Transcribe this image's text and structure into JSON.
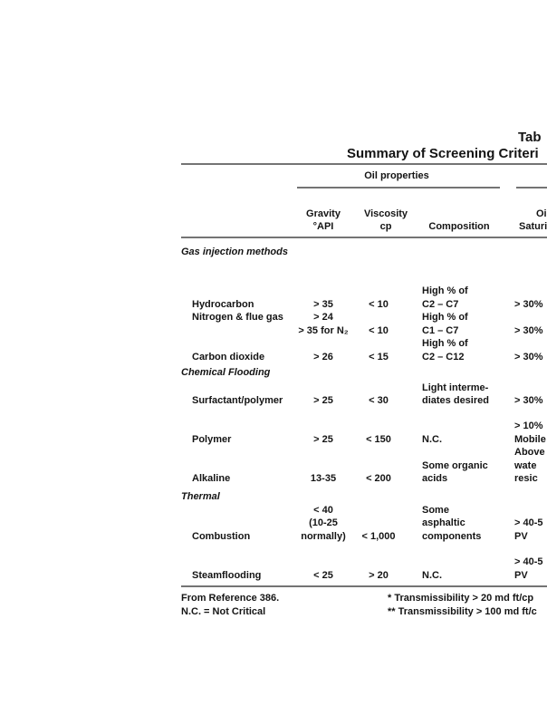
{
  "title": "Tab",
  "subtitle": "Summary of Screening Criteri",
  "group_header": "Oil properties",
  "columns": {
    "gravity": [
      "Gravity",
      "°API"
    ],
    "viscosity": [
      "Viscosity",
      "cp"
    ],
    "composition": [
      "Composition"
    ],
    "saturation": [
      "Oi",
      "Saturi"
    ]
  },
  "lines": [
    {
      "section": "Gas injection methods"
    },
    {
      "composition": "High % of"
    },
    {
      "method": "Hydrocarbon",
      "gravity": "> 35",
      "viscosity": "< 10",
      "composition": "C2 – C7",
      "saturation": "> 30%"
    },
    {
      "method": "Nitrogen & flue gas",
      "gravity": "> 24",
      "composition": "High % of"
    },
    {
      "gravity": "> 35 for N₂",
      "viscosity": "< 10",
      "composition": "C1 – C7",
      "saturation": "> 30%"
    },
    {
      "composition": "High % of"
    },
    {
      "method": "Carbon dioxide",
      "gravity": "> 26",
      "viscosity": "< 15",
      "composition": "C2 – C12",
      "saturation": "> 30%"
    },
    {
      "section": "Chemical Flooding"
    },
    {
      "composition": "Light interme-"
    },
    {
      "method": "Surfactant/polymer",
      "gravity": "> 25",
      "viscosity": "< 30",
      "composition": "diates desired",
      "saturation": "> 30%"
    },
    {
      "saturation": "> 10%"
    },
    {
      "method": "Polymer",
      "gravity": "> 25",
      "viscosity": "< 150",
      "composition": "N.C.",
      "saturation": "Mobile"
    },
    {
      "saturation": "Above"
    },
    {
      "composition": "Some organic",
      "saturation": "wate"
    },
    {
      "method": "Alkaline",
      "gravity": "13-35",
      "viscosity": "< 200",
      "composition": "acids",
      "saturation": "resic"
    },
    {
      "section": "Thermal"
    },
    {
      "gravity": "< 40",
      "composition": "Some"
    },
    {
      "gravity": "(10-25",
      "composition": "asphaltic",
      "saturation": "> 40-5"
    },
    {
      "method": "Combustion",
      "gravity": "normally)",
      "viscosity": "< 1,000",
      "composition": "components",
      "saturation": "PV"
    },
    {
      "saturation": "> 40-5"
    },
    {
      "method": "Steamflooding",
      "gravity": "< 25",
      "viscosity": "> 20",
      "composition": "N.C.",
      "saturation": "PV"
    }
  ],
  "footnotes": [
    [
      "From Reference 386.",
      "* Transmissibility > 20 md ft/cp"
    ],
    [
      "N.C. = Not Critical",
      "** Transmissibility > 100 md ft/c"
    ]
  ]
}
